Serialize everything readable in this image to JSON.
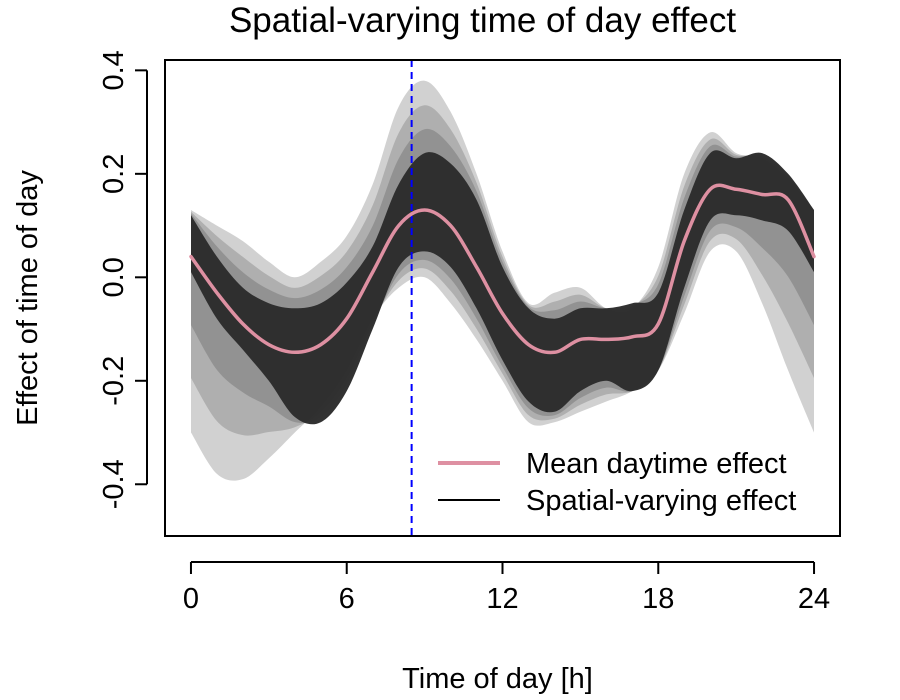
{
  "chart_data": {
    "type": "line",
    "title": "Spatial-varying time of day effect",
    "xlabel": "Time of day [h]",
    "ylabel": "Effect of time of day",
    "xlim": [
      -1,
      25
    ],
    "ylim": [
      -0.5,
      0.42
    ],
    "xticks": [
      0,
      6,
      12,
      18,
      24
    ],
    "xtick_labels": [
      "0",
      "6",
      "12",
      "18",
      "24"
    ],
    "yticks": [
      -0.4,
      -0.2,
      0.0,
      0.2,
      0.4
    ],
    "ytick_labels": [
      "-0.4",
      "-0.2",
      "0.0",
      "0.2",
      "0.4"
    ],
    "grid": false,
    "reference_line": {
      "x": 8.5,
      "style": "dashed",
      "color": "#0000ff"
    },
    "series": [
      {
        "name": "Mean daytime effect",
        "color": "#de90a2",
        "x": [
          0,
          1,
          2,
          3,
          4,
          5,
          6,
          7,
          8,
          9,
          10,
          11,
          12,
          13,
          14,
          15,
          16,
          17,
          18,
          19,
          20,
          21,
          22,
          23,
          24
        ],
        "y": [
          0.04,
          -0.03,
          -0.09,
          -0.13,
          -0.145,
          -0.13,
          -0.08,
          0.01,
          0.1,
          0.13,
          0.1,
          0.02,
          -0.07,
          -0.13,
          -0.145,
          -0.12,
          -0.12,
          -0.115,
          -0.09,
          0.07,
          0.17,
          0.17,
          0.16,
          0.15,
          0.04
        ]
      },
      {
        "name": "Spatial-varying effect",
        "color": "#000000",
        "band": {
          "x": [
            0,
            1,
            2,
            3,
            4,
            5,
            6,
            7,
            8,
            9,
            10,
            11,
            12,
            13,
            14,
            15,
            16,
            17,
            18,
            19,
            20,
            21,
            22,
            23,
            24
          ],
          "outer_upper": [
            0.13,
            0.1,
            0.07,
            0.03,
            0.0,
            0.03,
            0.08,
            0.18,
            0.33,
            0.38,
            0.32,
            0.2,
            0.05,
            -0.05,
            -0.03,
            -0.02,
            -0.06,
            -0.06,
            0.02,
            0.2,
            0.28,
            0.24,
            0.23,
            0.19,
            0.13
          ],
          "outer_lower": [
            -0.3,
            -0.38,
            -0.39,
            -0.35,
            -0.3,
            -0.25,
            -0.18,
            -0.08,
            -0.02,
            0.0,
            -0.05,
            -0.12,
            -0.2,
            -0.28,
            -0.28,
            -0.26,
            -0.24,
            -0.22,
            -0.18,
            -0.07,
            0.05,
            0.05,
            -0.05,
            -0.18,
            -0.3
          ],
          "core_upper": [
            0.12,
            0.04,
            -0.02,
            -0.05,
            -0.06,
            -0.05,
            -0.01,
            0.06,
            0.18,
            0.24,
            0.22,
            0.15,
            0.02,
            -0.06,
            -0.08,
            -0.06,
            -0.06,
            -0.05,
            -0.03,
            0.13,
            0.24,
            0.23,
            0.24,
            0.2,
            0.13
          ],
          "core_lower": [
            0.01,
            -0.08,
            -0.14,
            -0.2,
            -0.27,
            -0.28,
            -0.22,
            -0.1,
            0.02,
            0.05,
            0.02,
            -0.06,
            -0.16,
            -0.24,
            -0.26,
            -0.22,
            -0.2,
            -0.22,
            -0.18,
            -0.02,
            0.11,
            0.12,
            0.11,
            0.09,
            0.01
          ]
        }
      }
    ],
    "legend": {
      "position": "bottom-right",
      "entries": [
        {
          "label": "Mean daytime effect",
          "color": "#de90a2"
        },
        {
          "label": "Spatial-varying effect",
          "color": "#000000"
        }
      ]
    }
  }
}
